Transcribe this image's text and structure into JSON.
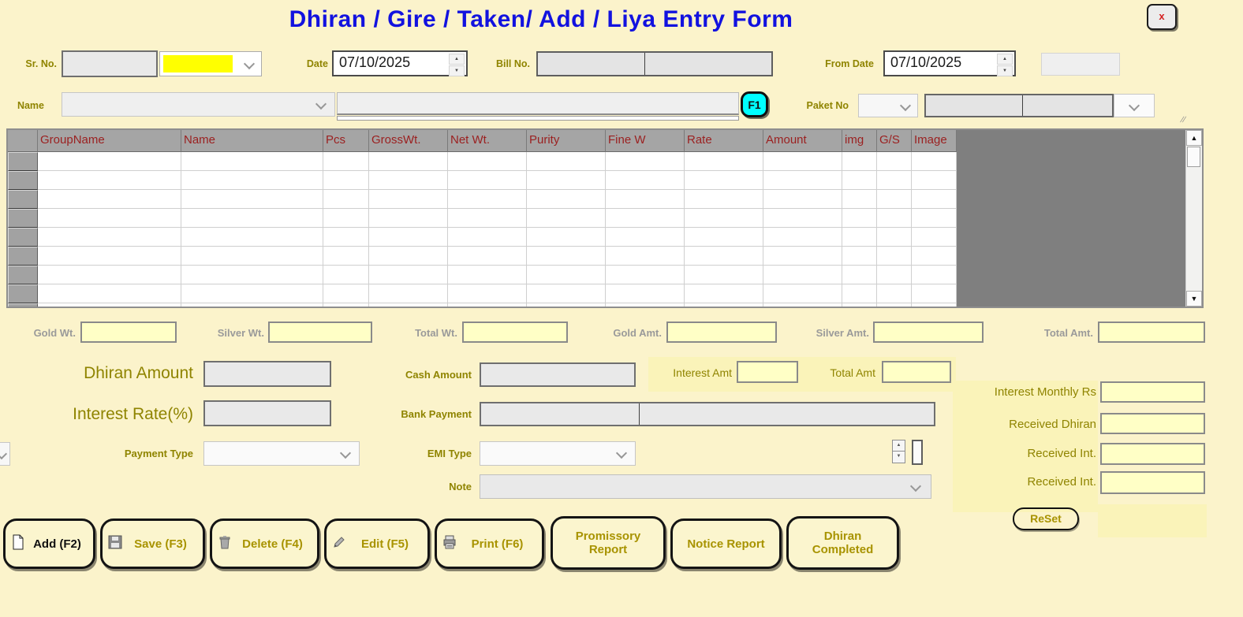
{
  "window": {
    "title": "Dhiran / Gire / Taken/ Add / Liya   Entry Form",
    "close_label": "x"
  },
  "colors": {
    "background": "#FBF3CB",
    "title_blue": "#1212DF",
    "label_olive": "#8F8400",
    "grid_header_text": "#9B2121",
    "grid_header_bg": "#A5A5A5",
    "grid_unused_bg": "#7F7F7F",
    "yellow_input_bg": "#FFFFC6",
    "combo_selection_yellow": "#FFFF00",
    "f1_cyan": "#00FFFF",
    "close_x_red": "#D42020"
  },
  "icons": {
    "up_arrow": "▲",
    "down_arrow": "▼",
    "resize_grip": "//"
  },
  "top_row": {
    "sr_no_label": "Sr. No.",
    "date_label": "Date",
    "date_value": "07/10/2025",
    "bill_no_label": "Bill No.",
    "from_date_label": "From Date",
    "from_date_value": "07/10/2025"
  },
  "name_row": {
    "name_label": "Name",
    "f1_button_label": "F1",
    "paket_no_label": "Paket No"
  },
  "grid": {
    "columns": [
      "GroupName",
      "Name",
      "Pcs",
      "GrossWt.",
      "Net Wt.",
      "Purity",
      "Fine W",
      "Rate",
      "Amount",
      "img",
      "G/S",
      "Image"
    ],
    "visible_empty_rows": 8
  },
  "totals": {
    "gold_wt_label": "Gold Wt.",
    "silver_wt_label": "Silver Wt.",
    "total_wt_label": "Total Wt.",
    "gold_amt_label": "Gold Amt.",
    "silver_amt_label": "Silver Amt.",
    "total_amt_label": "Total Amt."
  },
  "amounts": {
    "dhiran_amount_label": "Dhiran Amount",
    "cash_amount_label": "Cash Amount",
    "interest_amt_label": "Interest Amt",
    "total_amt_label": "Total Amt",
    "interest_rate_label": "Interest Rate(%)",
    "bank_payment_label": "Bank Payment",
    "payment_type_label": "Payment Type",
    "emi_type_label": "EMI Type",
    "note_label": "Note"
  },
  "right_panel": {
    "interest_monthly_label": "Interest Monthly Rs",
    "received_dhiran_label": "Received Dhiran",
    "received_int_1_label": "Received Int.",
    "received_int_2_label": "Received Int.",
    "reset_label": "ReSet"
  },
  "buttons": [
    {
      "label": "Add (F2)",
      "icon": "new-document"
    },
    {
      "label": "Save (F3)",
      "icon": "floppy-disk"
    },
    {
      "label": "Delete (F4)",
      "icon": "trash"
    },
    {
      "label": "Edit (F5)",
      "icon": "pencil"
    },
    {
      "label": "Print (F6)",
      "icon": "printer"
    },
    {
      "label": "Promissory Report",
      "icon": ""
    },
    {
      "label": "Notice Report",
      "icon": ""
    },
    {
      "label": "Dhiran Completed",
      "icon": ""
    }
  ]
}
